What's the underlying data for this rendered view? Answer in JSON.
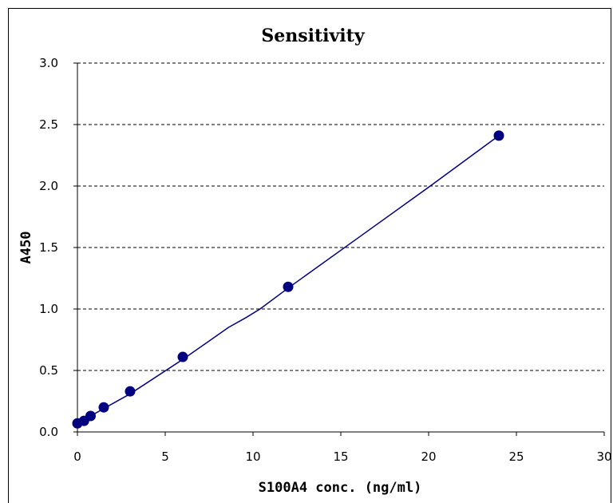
{
  "chart_data": {
    "type": "scatter",
    "title": "Sensitivity",
    "xlabel": "S100A4 conc. (ng/ml)",
    "ylabel": "A450",
    "xlim": [
      0,
      30
    ],
    "ylim": [
      0,
      3.0
    ],
    "x_ticks": [
      "0",
      "5",
      "10",
      "15",
      "20",
      "25",
      "30"
    ],
    "y_ticks": [
      "0.0",
      "0.5",
      "1.0",
      "1.5",
      "2.0",
      "2.5",
      "3.0"
    ],
    "grid": "horizontal dashed",
    "series": [
      {
        "x": [
          0,
          0.375,
          0.75,
          1.5,
          3,
          6,
          12,
          24
        ],
        "y": [
          0.07,
          0.09,
          0.13,
          0.2,
          0.33,
          0.61,
          1.18,
          2.41
        ]
      }
    ],
    "fit_line": {
      "x": [
        0,
        0.375,
        0.75,
        1.5,
        3,
        6,
        7.2,
        8.6,
        9.6,
        10.4,
        12,
        16,
        20,
        24
      ],
      "y": [
        0.07,
        0.09,
        0.13,
        0.19,
        0.31,
        0.59,
        0.71,
        0.85,
        0.93,
        1.0,
        1.17,
        1.58,
        1.99,
        2.41
      ]
    },
    "colors": {
      "marker": "#000080",
      "line": "#000080"
    }
  }
}
